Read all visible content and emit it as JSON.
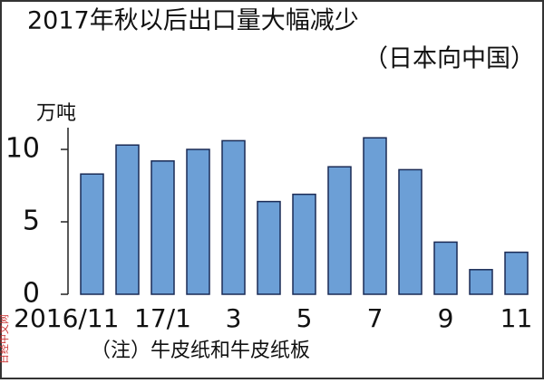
{
  "chart_data": {
    "type": "bar",
    "title": "2017年秋以后出口量大幅减少",
    "subtitle": "（日本向中国）",
    "y_axis_label": "万吨",
    "note": "（注）牛皮纸和牛皮纸板",
    "watermark": "日经中文网",
    "categories": [
      "2016/11",
      null,
      "17/1",
      null,
      "3",
      null,
      "5",
      null,
      "7",
      null,
      "9",
      null,
      "11"
    ],
    "values": [
      8.3,
      10.3,
      9.2,
      10.0,
      10.6,
      6.4,
      6.9,
      8.8,
      10.8,
      8.6,
      3.6,
      1.7,
      2.9
    ],
    "color": "#6c9fd6",
    "ylim": [
      0,
      11.5
    ],
    "yticks": [
      0,
      5,
      10
    ],
    "grid": false
  }
}
